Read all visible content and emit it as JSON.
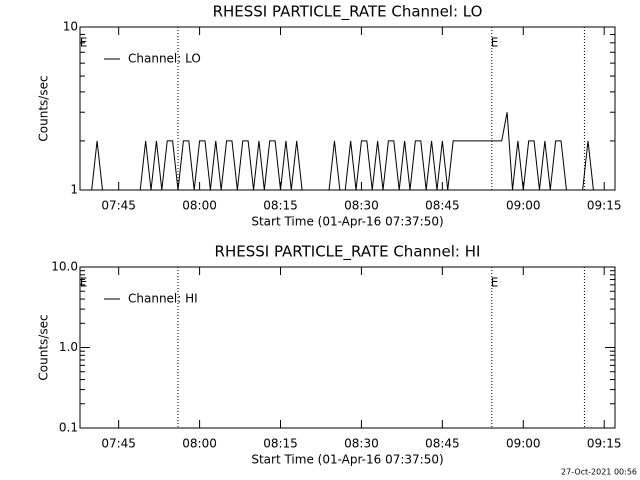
{
  "chart_data": [
    {
      "type": "line",
      "title": "RHESSI PARTICLE_RATE Channel: LO",
      "x_label": "Start Time (01-Apr-16 07:37:50)",
      "y_label": "Counts/sec",
      "log_y": true,
      "xlim": [
        "07:37:50",
        "09:17:00"
      ],
      "xticks": [
        "07:45",
        "08:00",
        "08:15",
        "08:30",
        "08:45",
        "09:00",
        "09:15"
      ],
      "ylim": [
        1,
        10
      ],
      "yticks": [
        1,
        10
      ],
      "yminorticks": [
        2,
        3,
        4,
        5,
        6,
        7,
        8,
        9
      ],
      "vlines": [
        "07:56:00",
        "08:54:10",
        "09:11:20"
      ],
      "annotations": [
        {
          "text": "E",
          "x": "07:38:30"
        },
        {
          "text": "E",
          "x": "08:54:40"
        }
      ],
      "legend": "upper left",
      "x": [
        "07:38",
        "07:39",
        "07:40",
        "07:41",
        "07:42",
        "07:43",
        "07:44",
        "07:45",
        "07:46",
        "07:47",
        "07:48",
        "07:49",
        "07:50",
        "07:51",
        "07:52",
        "07:53",
        "07:54",
        "07:55",
        "07:56",
        "07:57",
        "07:58",
        "07:59",
        "08:00",
        "08:01",
        "08:02",
        "08:03",
        "08:04",
        "08:05",
        "08:06",
        "08:07",
        "08:08",
        "08:09",
        "08:10",
        "08:11",
        "08:12",
        "08:13",
        "08:14",
        "08:15",
        "08:16",
        "08:17",
        "08:18",
        "08:19",
        "08:20",
        "08:21",
        "08:22",
        "08:23",
        "08:24",
        "08:25",
        "08:26",
        "08:27",
        "08:28",
        "08:29",
        "08:30",
        "08:31",
        "08:32",
        "08:33",
        "08:34",
        "08:35",
        "08:36",
        "08:37",
        "08:38",
        "08:39",
        "08:40",
        "08:41",
        "08:42",
        "08:43",
        "08:44",
        "08:45",
        "08:46",
        "08:47",
        "08:48",
        "08:49",
        "08:50",
        "08:51",
        "08:52",
        "08:53",
        "08:54",
        "08:55",
        "08:56",
        "08:57",
        "08:58",
        "08:59",
        "09:00",
        "09:01",
        "09:02",
        "09:03",
        "09:04",
        "09:05",
        "09:06",
        "09:07",
        "09:08",
        "09:09",
        "09:10",
        "09:11",
        "09:12",
        "09:13",
        "09:14",
        "09:15",
        "09:16"
      ],
      "series": [
        {
          "name": "Channel: LO",
          "color": "#000000",
          "values": [
            1,
            1,
            1,
            2,
            1,
            1,
            1,
            1,
            1,
            1,
            1,
            1,
            2,
            1,
            2,
            1,
            2,
            2,
            1,
            2,
            2,
            1,
            2,
            2,
            1,
            2,
            1,
            2,
            2,
            1,
            2,
            2,
            1,
            2,
            1,
            2,
            2,
            1,
            2,
            1,
            2,
            1,
            1,
            1,
            1,
            1,
            1,
            2,
            1,
            1,
            2,
            1,
            2,
            2,
            1,
            2,
            1,
            2,
            2,
            1,
            2,
            1,
            2,
            2,
            1,
            2,
            1,
            2,
            1,
            2,
            2,
            2,
            2,
            2,
            2,
            2,
            2,
            2,
            2,
            3,
            1,
            2,
            1,
            2,
            2,
            1,
            2,
            1,
            2,
            2,
            1,
            1,
            1,
            1,
            2,
            1,
            1,
            1,
            1
          ]
        }
      ]
    },
    {
      "type": "line",
      "title": "RHESSI PARTICLE_RATE Channel: HI",
      "x_label": "Start Time (01-Apr-16 07:37:50)",
      "y_label": "Counts/sec",
      "log_y": true,
      "xlim": [
        "07:37:50",
        "09:17:00"
      ],
      "xticks": [
        "07:45",
        "08:00",
        "08:15",
        "08:30",
        "08:45",
        "09:00",
        "09:15"
      ],
      "ylim": [
        0.1,
        10
      ],
      "yticks": [
        0.1,
        {
          "value": 1,
          "label": "1.0"
        },
        {
          "value": 10,
          "label": "10.0"
        }
      ],
      "yminorticks": [
        0.2,
        0.3,
        0.4,
        0.5,
        0.6,
        0.7,
        0.8,
        0.9,
        2,
        3,
        4,
        5,
        6,
        7,
        8,
        9
      ],
      "vlines": [
        "07:56:00",
        "08:54:10",
        "09:11:20"
      ],
      "annotations": [
        {
          "text": "E",
          "x": "07:38:30"
        },
        {
          "text": "E",
          "x": "08:54:40"
        }
      ],
      "legend": "upper left",
      "x": [],
      "series": [
        {
          "name": "Channel: HI",
          "color": "#000000",
          "values": []
        }
      ]
    }
  ],
  "footer": "27-Oct-2021 00:56"
}
